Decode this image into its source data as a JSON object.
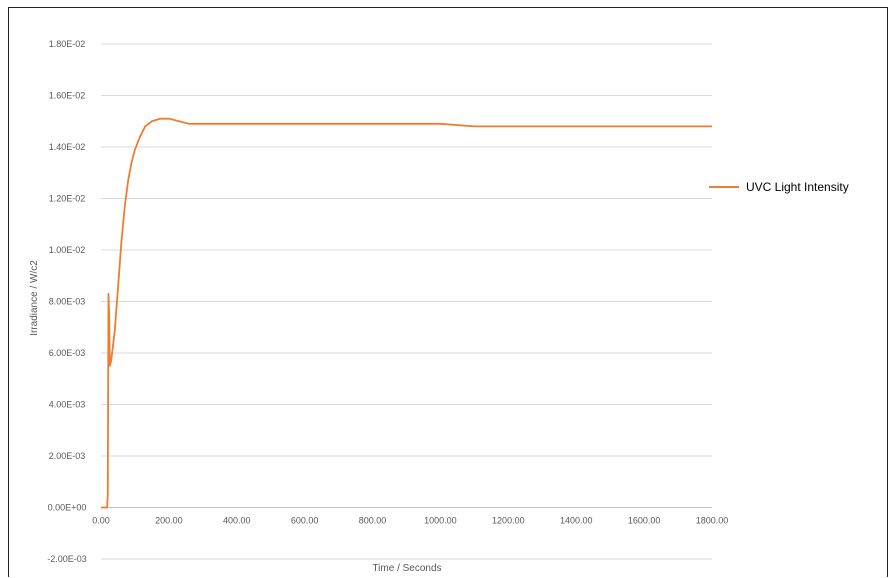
{
  "chart_data": {
    "type": "line",
    "title": "",
    "xlabel": "Time / Seconds",
    "ylabel": "Irradiance / W/c2",
    "xlim": [
      0,
      1800
    ],
    "ylim": [
      -0.002,
      0.018
    ],
    "x_ticks": [
      {
        "value": 0,
        "label": "0.00"
      },
      {
        "value": 200,
        "label": "200.00"
      },
      {
        "value": 400,
        "label": "400.00"
      },
      {
        "value": 600,
        "label": "600.00"
      },
      {
        "value": 800,
        "label": "800.00"
      },
      {
        "value": 1000,
        "label": "1000.00"
      },
      {
        "value": 1200,
        "label": "1200.00"
      },
      {
        "value": 1400,
        "label": "1400.00"
      },
      {
        "value": 1600,
        "label": "1600.00"
      },
      {
        "value": 1800,
        "label": "1800.00"
      }
    ],
    "y_ticks": [
      {
        "value": 0.018,
        "label": "1.80E-02"
      },
      {
        "value": 0.016,
        "label": "1.60E-02"
      },
      {
        "value": 0.014,
        "label": "1.40E-02"
      },
      {
        "value": 0.012,
        "label": "1.20E-02"
      },
      {
        "value": 0.01,
        "label": "1.00E-02"
      },
      {
        "value": 0.008,
        "label": "8.00E-03"
      },
      {
        "value": 0.006,
        "label": "6.00E-03"
      },
      {
        "value": 0.004,
        "label": "4.00E-03"
      },
      {
        "value": 0.002,
        "label": "2.00E-03"
      },
      {
        "value": 0.0,
        "label": "0.00E+00"
      },
      {
        "value": -0.002,
        "label": "-2.00E-03"
      }
    ],
    "grid": true,
    "legend_position": "right",
    "series": [
      {
        "name": "UVC Light Intensity",
        "color": "#ed7d31",
        "points": [
          [
            0,
            0.0
          ],
          [
            18,
            0.0
          ],
          [
            20,
            0.0005
          ],
          [
            22,
            0.0083
          ],
          [
            24,
            0.0075
          ],
          [
            26,
            0.0055
          ],
          [
            30,
            0.0057
          ],
          [
            40,
            0.0068
          ],
          [
            50,
            0.0085
          ],
          [
            60,
            0.0103
          ],
          [
            70,
            0.0117
          ],
          [
            80,
            0.0127
          ],
          [
            90,
            0.0134
          ],
          [
            100,
            0.0139
          ],
          [
            115,
            0.0144
          ],
          [
            130,
            0.0148
          ],
          [
            150,
            0.015
          ],
          [
            175,
            0.0151
          ],
          [
            200,
            0.0151
          ],
          [
            230,
            0.015
          ],
          [
            260,
            0.0149
          ],
          [
            300,
            0.0149
          ],
          [
            400,
            0.0149
          ],
          [
            500,
            0.0149
          ],
          [
            600,
            0.0149
          ],
          [
            700,
            0.0149
          ],
          [
            800,
            0.0149
          ],
          [
            900,
            0.0149
          ],
          [
            1000,
            0.0149
          ],
          [
            1100,
            0.0148
          ],
          [
            1200,
            0.0148
          ],
          [
            1300,
            0.0148
          ],
          [
            1400,
            0.0148
          ],
          [
            1500,
            0.0148
          ],
          [
            1600,
            0.0148
          ],
          [
            1700,
            0.0148
          ],
          [
            1800,
            0.0148
          ]
        ]
      }
    ]
  }
}
